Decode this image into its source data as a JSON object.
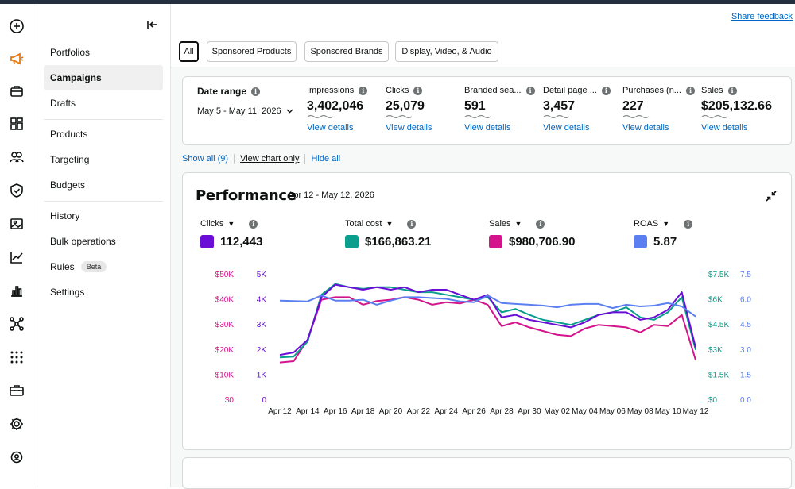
{
  "header": {
    "share_feedback": "Share feedback"
  },
  "rail": {
    "icons": [
      "plus-circle-icon",
      "megaphone-icon",
      "briefcase-icon",
      "grid-icon",
      "people-icon",
      "shield-icon",
      "image-icon",
      "trend-icon",
      "bar-chart-icon",
      "network-icon",
      "dots-grid-icon",
      "toolbox-icon",
      "gear-icon",
      "users-gear-icon"
    ],
    "accent": "#e47911"
  },
  "sidebar": {
    "items": [
      {
        "label": "Portfolios"
      },
      {
        "label": "Campaigns"
      },
      {
        "label": "Drafts"
      },
      {
        "label": "Products"
      },
      {
        "label": "Targeting"
      },
      {
        "label": "Budgets"
      },
      {
        "label": "History"
      },
      {
        "label": "Bulk operations"
      },
      {
        "label": "Rules",
        "badge": "Beta"
      },
      {
        "label": "Settings"
      }
    ]
  },
  "tabs": [
    "All",
    "Sponsored Products",
    "Sponsored Brands",
    "Display, Video, & Audio"
  ],
  "summary": {
    "date_label": "Date range",
    "date_value": "May 5 - May 11, 2026",
    "metrics": [
      {
        "label": "Impressions",
        "value": "3,402,046",
        "link": "View details"
      },
      {
        "label": "Clicks",
        "value": "25,079",
        "link": "View details"
      },
      {
        "label": "Branded sea...",
        "value": "591",
        "link": "View details"
      },
      {
        "label": "Detail page ...",
        "value": "3,457",
        "link": "View details"
      },
      {
        "label": "Purchases (n...",
        "value": "227",
        "link": "View details"
      },
      {
        "label": "Sales",
        "value": "$205,132.66",
        "link": "View details"
      }
    ]
  },
  "links": {
    "show_all": "Show all (9)",
    "chart_only": "View chart only",
    "hide_all": "Hide all"
  },
  "performance": {
    "title": "Performance",
    "range": "Apr 12 - May 12, 2026",
    "metrics": [
      {
        "label": "Clicks",
        "value": "112,443",
        "color": "#6a0dd6"
      },
      {
        "label": "Total cost",
        "value": "$166,863.21",
        "color": "#0a9e8c"
      },
      {
        "label": "Sales",
        "value": "$980,706.90",
        "color": "#d4148c"
      },
      {
        "label": "ROAS",
        "value": "5.87",
        "color": "#5b7ff0"
      }
    ]
  },
  "chart_data": {
    "type": "line",
    "x": [
      "Apr 12",
      "Apr 13",
      "Apr 14",
      "Apr 15",
      "Apr 16",
      "Apr 17",
      "Apr 18",
      "Apr 19",
      "Apr 20",
      "Apr 21",
      "Apr 22",
      "Apr 23",
      "Apr 24",
      "Apr 25",
      "Apr 26",
      "Apr 27",
      "Apr 28",
      "Apr 29",
      "Apr 30",
      "May 01",
      "May 02",
      "May 03",
      "May 04",
      "May 05",
      "May 06",
      "May 07",
      "May 08",
      "May 09",
      "May 10",
      "May 11",
      "May 12"
    ],
    "x_tick_labels": [
      "Apr 12",
      "Apr 14",
      "Apr 16",
      "Apr 18",
      "Apr 20",
      "Apr 22",
      "Apr 24",
      "Apr 26",
      "Apr 28",
      "Apr 30",
      "May 02",
      "May 04",
      "May 06",
      "May 08",
      "May 10",
      "May 12"
    ],
    "axes": [
      {
        "ticks": [
          "$0",
          "$10K",
          "$20K",
          "$30K",
          "$40K",
          "$50K"
        ],
        "color": "#d4148c",
        "range": [
          0,
          50000
        ]
      },
      {
        "ticks": [
          "0",
          "1K",
          "2K",
          "3K",
          "4K",
          "5K"
        ],
        "color": "#6a0dd6",
        "range": [
          0,
          5000
        ]
      },
      {
        "ticks": [
          "$0",
          "$1.5K",
          "$3K",
          "$4.5K",
          "$6K",
          "$7.5K"
        ],
        "color": "#0a9e8c",
        "range": [
          0,
          7500
        ]
      },
      {
        "ticks": [
          "0.0",
          "1.5",
          "3.0",
          "4.5",
          "6.0",
          "7.5"
        ],
        "color": "#5b7ff0",
        "range": [
          0,
          7.5
        ]
      }
    ],
    "series": [
      {
        "name": "Clicks",
        "color": "#6a0dd6",
        "values": [
          1800,
          1900,
          2400,
          4100,
          4600,
          4500,
          4400,
          4500,
          4400,
          4500,
          4300,
          4400,
          4400,
          4200,
          4000,
          4200,
          3300,
          3400,
          3200,
          3100,
          3000,
          2900,
          3100,
          3400,
          3500,
          3500,
          3200,
          3300,
          3600,
          4300,
          2100
        ]
      },
      {
        "name": "Total cost",
        "color": "#0a9e8c",
        "values": [
          2550,
          2600,
          3500,
          6300,
          6950,
          6750,
          6650,
          6750,
          6750,
          6600,
          6450,
          6450,
          6300,
          6150,
          6000,
          6150,
          5250,
          5450,
          5100,
          4800,
          4650,
          4500,
          4800,
          5100,
          5250,
          5550,
          4950,
          4800,
          5250,
          6150,
          3000
        ]
      },
      {
        "name": "Sales",
        "color": "#d4148c",
        "values": [
          15000,
          15500,
          24000,
          40000,
          41000,
          41000,
          38000,
          39500,
          40000,
          41000,
          40000,
          38000,
          39000,
          38500,
          40000,
          38000,
          29500,
          31000,
          29000,
          27500,
          26000,
          25500,
          28500,
          30000,
          29500,
          29000,
          27000,
          30000,
          29500,
          34000,
          16000
        ]
      },
      {
        "name": "ROAS",
        "color": "#5b7ff0",
        "values": [
          5.95,
          5.92,
          5.9,
          6.25,
          5.95,
          5.95,
          6.0,
          5.7,
          5.95,
          6.15,
          6.15,
          6.1,
          6.05,
          5.9,
          5.85,
          6.25,
          5.8,
          5.75,
          5.7,
          5.65,
          5.55,
          5.7,
          5.75,
          5.75,
          5.5,
          5.7,
          5.6,
          5.65,
          5.8,
          5.6,
          5.0
        ]
      }
    ]
  }
}
